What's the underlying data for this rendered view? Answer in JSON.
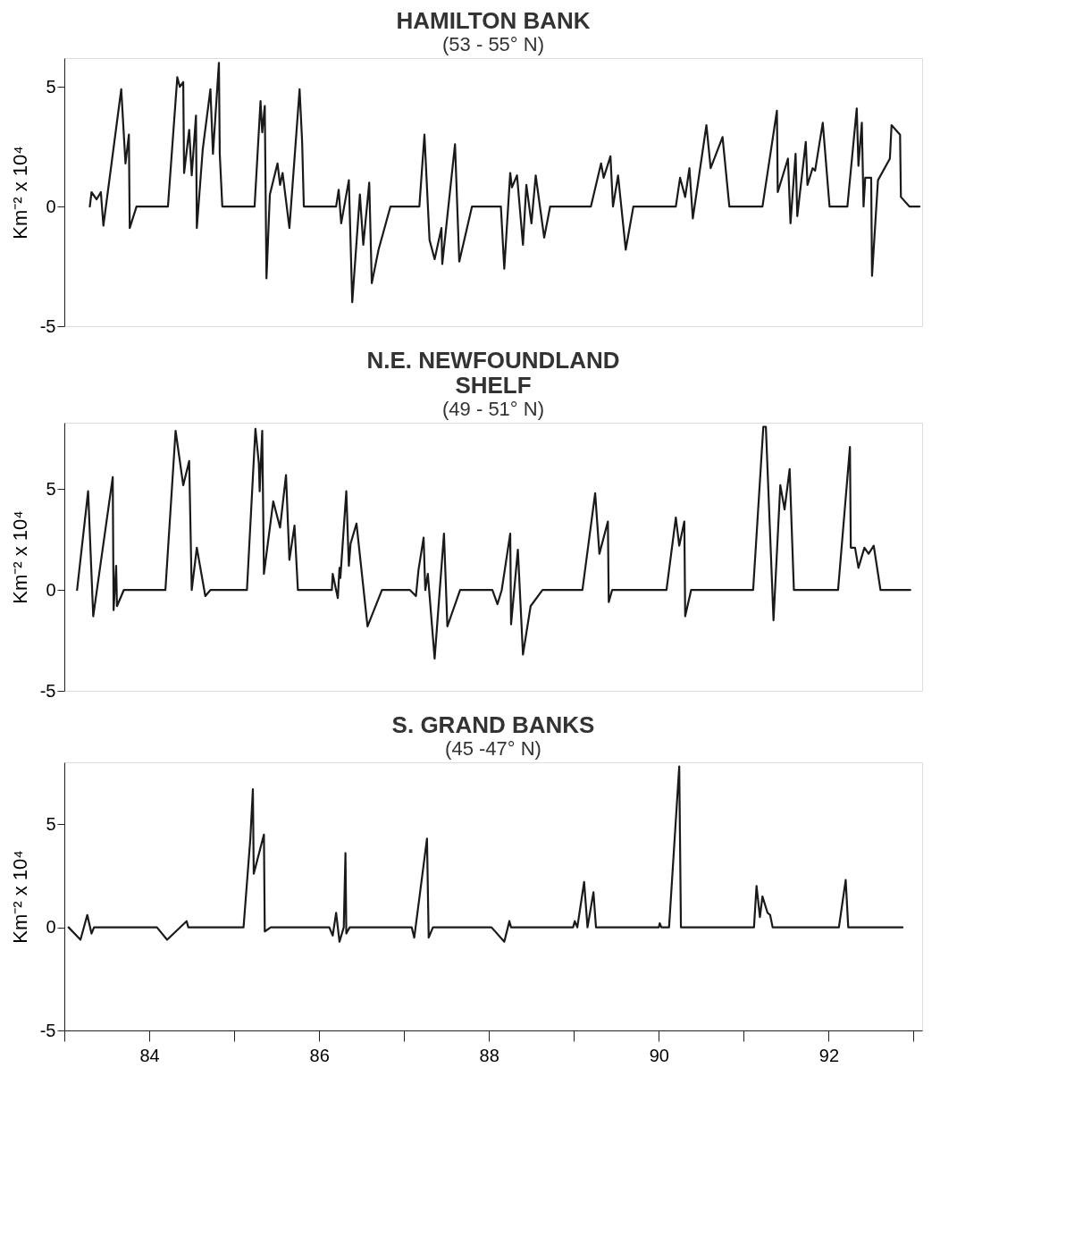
{
  "chart_data": [
    {
      "type": "line",
      "title": "HAMILTON BANK",
      "subtitle": "(53 - 55° N)",
      "ylabel": "Km⁻² x 10⁴",
      "color": "#1a1a1a",
      "line_style": "solid",
      "tick_labels": "y",
      "xlim": [
        83,
        93.1
      ],
      "ylim": [
        -5,
        6.2
      ],
      "yticks": [
        -5,
        0,
        5
      ],
      "x": [
        83.3,
        83.32,
        83.38,
        83.43,
        83.46,
        83.67,
        83.72,
        83.76,
        83.77,
        83.85,
        84.22,
        84.33,
        84.36,
        84.4,
        84.41,
        84.47,
        84.5,
        84.55,
        84.56,
        84.63,
        84.72,
        84.75,
        84.82,
        84.83,
        84.86,
        85.24,
        85.31,
        85.33,
        85.36,
        85.38,
        85.42,
        85.51,
        85.54,
        85.57,
        85.65,
        85.77,
        85.8,
        85.82,
        86.2,
        86.23,
        86.26,
        86.35,
        86.39,
        86.48,
        86.52,
        86.59,
        86.62,
        86.7,
        86.84,
        87.18,
        87.24,
        87.3,
        87.36,
        87.44,
        87.45,
        87.6,
        87.65,
        87.8,
        88.14,
        88.18,
        88.25,
        88.27,
        88.33,
        88.4,
        88.44,
        88.5,
        88.55,
        88.65,
        88.72,
        89.2,
        89.32,
        89.35,
        89.43,
        89.46,
        89.52,
        89.61,
        89.7,
        90.2,
        90.25,
        90.31,
        90.36,
        90.4,
        90.56,
        90.61,
        90.75,
        90.83,
        91.22,
        91.39,
        91.4,
        91.52,
        91.55,
        91.61,
        91.63,
        91.73,
        91.75,
        91.81,
        91.84,
        91.93,
        92.01,
        92.22,
        92.33,
        92.35,
        92.39,
        92.41,
        92.43,
        92.5,
        92.51,
        92.58,
        92.72,
        92.74,
        92.84,
        92.85,
        92.95,
        93.07
      ],
      "values": [
        0,
        0.6,
        0.3,
        0.6,
        -0.8,
        4.9,
        1.8,
        3.0,
        -0.9,
        0,
        0,
        5.4,
        5.0,
        5.2,
        1.4,
        3.2,
        1.3,
        3.8,
        -0.9,
        2.4,
        4.9,
        2.2,
        6.0,
        2.2,
        0,
        0,
        4.4,
        3.1,
        4.2,
        -3.0,
        0.5,
        1.8,
        0.9,
        1.4,
        -0.9,
        4.9,
        2.7,
        0,
        0,
        0.7,
        -0.7,
        1.1,
        -4.0,
        0.5,
        -1.6,
        1.0,
        -3.2,
        -1.8,
        0,
        0,
        3.0,
        -1.4,
        -2.2,
        -0.9,
        -2.4,
        2.6,
        -2.3,
        0,
        0,
        -2.6,
        1.4,
        0.8,
        1.3,
        -1.6,
        0.9,
        -0.7,
        1.3,
        -1.3,
        0,
        0,
        1.8,
        1.2,
        2.1,
        0,
        1.3,
        -1.8,
        0,
        0,
        1.2,
        0.4,
        1.6,
        -0.5,
        3.4,
        1.6,
        2.9,
        0,
        0,
        4.0,
        0.6,
        2.0,
        -0.7,
        2.2,
        -0.4,
        2.7,
        0.9,
        1.6,
        1.5,
        3.5,
        0,
        0,
        4.1,
        1.7,
        3.5,
        0,
        1.2,
        1.2,
        -2.9,
        1.1,
        2.0,
        3.4,
        3.0,
        0.4,
        0,
        0
      ]
    },
    {
      "type": "line",
      "title": "N.E. NEWFOUNDLAND SHELF",
      "subtitle": "(49 - 51° N)",
      "ylabel": "Km⁻² x 10⁴",
      "color": "#1a1a1a",
      "line_style": "solid",
      "tick_labels": "y",
      "xlim": [
        83,
        93.1
      ],
      "ylim": [
        -5,
        8.3
      ],
      "yticks": [
        -5,
        0,
        5
      ],
      "x": [
        83.15,
        83.28,
        83.34,
        83.57,
        83.58,
        83.61,
        83.62,
        83.7,
        84.19,
        84.31,
        84.4,
        84.47,
        84.5,
        84.56,
        84.66,
        84.72,
        85.15,
        85.25,
        85.29,
        85.3,
        85.33,
        85.35,
        85.46,
        85.54,
        85.61,
        85.65,
        85.71,
        85.75,
        86.15,
        86.16,
        86.22,
        86.24,
        86.25,
        86.32,
        86.35,
        86.37,
        86.44,
        86.57,
        86.74,
        87.07,
        87.14,
        87.17,
        87.23,
        87.25,
        87.28,
        87.36,
        87.47,
        87.51,
        87.66,
        88.04,
        88.1,
        88.15,
        88.25,
        88.26,
        88.34,
        88.4,
        88.49,
        88.63,
        89.1,
        89.25,
        89.3,
        89.4,
        89.41,
        89.45,
        90.09,
        90.2,
        90.24,
        90.3,
        90.31,
        90.38,
        91.11,
        91.23,
        91.26,
        91.35,
        91.43,
        91.48,
        91.54,
        91.59,
        92.11,
        92.25,
        92.26,
        92.31,
        92.35,
        92.42,
        92.47,
        92.53,
        92.61,
        92.96
      ],
      "values": [
        0,
        4.9,
        -1.3,
        5.6,
        -1.0,
        1.2,
        -0.8,
        0,
        0,
        7.9,
        5.2,
        6.4,
        0,
        2.1,
        -0.3,
        0,
        0,
        8.0,
        6.3,
        4.9,
        7.9,
        0.8,
        4.4,
        3.1,
        5.7,
        1.5,
        3.2,
        0,
        0,
        0.8,
        -0.4,
        1.1,
        0.6,
        4.9,
        1.2,
        2.3,
        3.3,
        -1.8,
        0,
        0,
        -0.3,
        1.0,
        2.6,
        0,
        0.8,
        -3.4,
        2.8,
        -1.8,
        0,
        0,
        -0.7,
        0,
        2.8,
        -1.7,
        2.0,
        -3.2,
        -0.8,
        0,
        0,
        4.8,
        1.8,
        3.4,
        -0.6,
        0,
        0,
        3.6,
        2.2,
        3.4,
        -1.3,
        0,
        0,
        8.1,
        8.1,
        -1.5,
        5.2,
        4.0,
        6.0,
        0,
        0,
        7.1,
        2.1,
        2.1,
        1.1,
        2.1,
        1.8,
        2.2,
        0,
        0
      ]
    },
    {
      "type": "line",
      "title": "S. GRAND BANKS",
      "subtitle": "(45 -47° N)",
      "ylabel": "Km⁻² x 10⁴",
      "color": "#1a1a1a",
      "line_style": "solid",
      "xlim": [
        83,
        93.1
      ],
      "xticks": [
        {
          "value": 83,
          "label": null
        },
        84,
        {
          "value": 85,
          "label": null
        },
        86,
        {
          "value": 87,
          "label": null
        },
        88,
        {
          "value": 89,
          "label": null
        },
        90,
        {
          "value": 91,
          "label": null
        },
        92,
        {
          "value": 93,
          "label": null
        }
      ],
      "ylim": [
        -5,
        8
      ],
      "yticks": [
        -5,
        0,
        5
      ],
      "x": [
        83.05,
        83.19,
        83.27,
        83.32,
        83.35,
        84.09,
        84.21,
        84.44,
        84.46,
        85.11,
        85.19,
        85.22,
        85.23,
        85.35,
        85.36,
        85.43,
        86.12,
        86.16,
        86.2,
        86.24,
        86.29,
        86.31,
        86.32,
        86.36,
        87.09,
        87.12,
        87.27,
        87.29,
        87.34,
        88.03,
        88.18,
        88.24,
        88.26,
        88.99,
        89.01,
        89.04,
        89.12,
        89.16,
        89.23,
        89.26,
        90.0,
        90.01,
        90.03,
        90.12,
        90.24,
        90.26,
        91.12,
        91.15,
        91.19,
        91.22,
        91.28,
        91.31,
        91.34,
        92.12,
        92.2,
        92.23,
        92.87
      ],
      "values": [
        0,
        -0.6,
        0.6,
        -0.3,
        0,
        0,
        -0.6,
        0.3,
        0,
        0,
        4.3,
        6.7,
        2.6,
        4.5,
        -0.2,
        0,
        0,
        -0.4,
        0.7,
        -0.7,
        0,
        3.6,
        -0.3,
        0,
        0,
        -0.5,
        4.3,
        -0.5,
        0,
        0,
        -0.7,
        0.3,
        0,
        0,
        0.3,
        0,
        2.2,
        0,
        1.7,
        0,
        0,
        0.2,
        0,
        0,
        7.8,
        0,
        0,
        2.0,
        0.5,
        1.5,
        0.7,
        0.6,
        0,
        0,
        2.3,
        0,
        0
      ]
    }
  ]
}
